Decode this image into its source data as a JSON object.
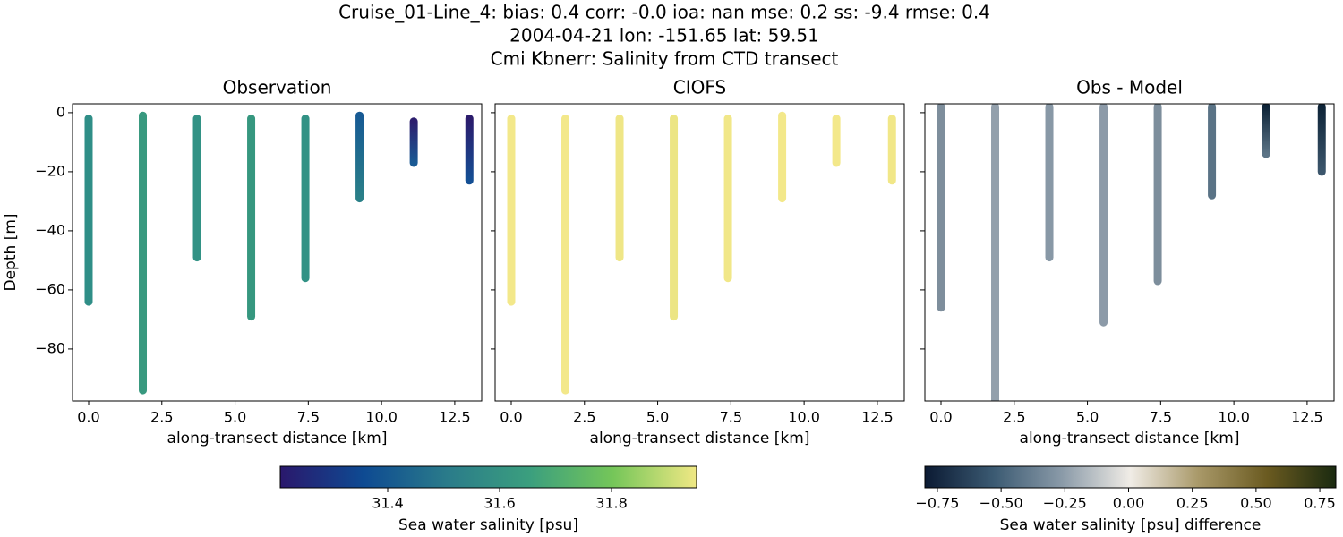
{
  "suptitle": [
    "Cruise_01-Line_4: bias: 0.4  corr: -0.0  ioa: nan  mse: 0.2  ss: -9.4  rmse: 0.4",
    "2004-04-21 lon: -151.65 lat: 59.51",
    "Cmi Kbnerr: Salinity from CTD transect"
  ],
  "chart_data": [
    {
      "type": "profile",
      "title": "Observation",
      "xlabel": "along-transect distance [km]",
      "ylabel": "Depth [m]",
      "xlim": [
        -0.55,
        13.42
      ],
      "ylim": [
        -97.6,
        3
      ],
      "xticks": [
        {
          "value": 0,
          "label": "0.0"
        },
        2.5,
        {
          "value": 5,
          "label": "5.0"
        },
        7.5,
        {
          "value": 10,
          "label": "10.0"
        },
        12.5
      ],
      "yticks": [
        {
          "value": -80,
          "label": "−80"
        },
        {
          "value": -60,
          "label": "−60"
        },
        {
          "value": -40,
          "label": "−40"
        },
        {
          "value": -20,
          "label": "−20"
        },
        0
      ],
      "series": [
        {
          "x": 0,
          "top": -2,
          "bottom": -64,
          "colors": [
            "#2f8e87",
            "#2f8e87"
          ]
        },
        {
          "x": 1.85,
          "top": -1,
          "bottom": -94,
          "colors": [
            "#38997f",
            "#38997f"
          ]
        },
        {
          "x": 3.7,
          "top": -2,
          "bottom": -49,
          "colors": [
            "#329285",
            "#329285"
          ]
        },
        {
          "x": 5.55,
          "top": -2,
          "bottom": -69,
          "colors": [
            "#36977f",
            "#36977f"
          ]
        },
        {
          "x": 7.4,
          "top": -2,
          "bottom": -56,
          "colors": [
            "#329285",
            "#329285"
          ]
        },
        {
          "x": 9.25,
          "top": -1,
          "bottom": -29,
          "colors": [
            "#175a94",
            "#2a8088"
          ]
        },
        {
          "x": 11.1,
          "top": -3,
          "bottom": -17,
          "colors": [
            "#2d1e6e",
            "#1a5a94"
          ]
        },
        {
          "x": 13.0,
          "top": -2,
          "bottom": -23,
          "colors": [
            "#2b1b6c",
            "#144f94"
          ]
        }
      ]
    },
    {
      "type": "profile",
      "title": "CIOFS",
      "xlabel": "along-transect distance [km]",
      "xlim": [
        -0.55,
        13.42
      ],
      "ylim": [
        -97.6,
        3
      ],
      "xticks": [
        {
          "value": 0,
          "label": "0.0"
        },
        2.5,
        {
          "value": 5,
          "label": "5.0"
        },
        7.5,
        {
          "value": 10,
          "label": "10.0"
        },
        12.5
      ],
      "yticks": [
        -80,
        -60,
        -40,
        -20,
        0
      ],
      "ytick_labels": false,
      "series": [
        {
          "x": 0,
          "top": -2,
          "bottom": -64,
          "colors": [
            "#f3e88a",
            "#f3e88a"
          ]
        },
        {
          "x": 1.85,
          "top": -2,
          "bottom": -94,
          "colors": [
            "#f3e88a",
            "#f3e88a"
          ]
        },
        {
          "x": 3.7,
          "top": -2,
          "bottom": -49,
          "colors": [
            "#efe686",
            "#efe686"
          ]
        },
        {
          "x": 5.55,
          "top": -2,
          "bottom": -69,
          "colors": [
            "#ece584",
            "#ece584"
          ]
        },
        {
          "x": 7.4,
          "top": -2,
          "bottom": -56,
          "colors": [
            "#f1e788",
            "#f1e788"
          ]
        },
        {
          "x": 9.25,
          "top": -1,
          "bottom": -29,
          "colors": [
            "#f3e88a",
            "#f3e88a"
          ]
        },
        {
          "x": 11.1,
          "top": -2,
          "bottom": -17,
          "colors": [
            "#f3e88a",
            "#f3e88a"
          ]
        },
        {
          "x": 13.0,
          "top": -2,
          "bottom": -23,
          "colors": [
            "#f1e788",
            "#f1e788"
          ]
        }
      ]
    },
    {
      "type": "profile",
      "title": "Obs - Model",
      "xlabel": "along-transect distance [km]",
      "xlim": [
        -0.55,
        13.42
      ],
      "ylim": [
        -97.6,
        3
      ],
      "xticks": [
        {
          "value": 0,
          "label": "0.0"
        },
        2.5,
        {
          "value": 5,
          "label": "5.0"
        },
        7.5,
        {
          "value": 10,
          "label": "10.0"
        },
        12.5
      ],
      "yticks": [
        -80,
        -60,
        -40,
        -20,
        0
      ],
      "ytick_labels": false,
      "series": [
        {
          "x": 0,
          "top": 2,
          "bottom": -66,
          "colors": [
            "#7e8e9c",
            "#7e8e9c"
          ]
        },
        {
          "x": 1.85,
          "top": 2,
          "bottom": -100,
          "colors": [
            "#93a0ac",
            "#93a0ac"
          ]
        },
        {
          "x": 3.7,
          "top": 2,
          "bottom": -49,
          "colors": [
            "#8898a6",
            "#8898a6"
          ]
        },
        {
          "x": 5.55,
          "top": 2,
          "bottom": -71,
          "colors": [
            "#8c9aa8",
            "#8c9aa8"
          ]
        },
        {
          "x": 7.4,
          "top": 2,
          "bottom": -57,
          "colors": [
            "#7d8e9c",
            "#7d8e9c"
          ]
        },
        {
          "x": 9.25,
          "top": 2,
          "bottom": -28,
          "colors": [
            "#5a7386",
            "#5a7386"
          ]
        },
        {
          "x": 11.1,
          "top": 2,
          "bottom": -14,
          "colors": [
            "#0e2438",
            "#5c7486"
          ]
        },
        {
          "x": 13.0,
          "top": 2,
          "bottom": -20,
          "colors": [
            "#0e2438",
            "#3c566c"
          ]
        }
      ]
    }
  ],
  "colorbars": [
    {
      "label": "Sea water salinity [psu]",
      "lim": [
        31.208,
        31.952
      ],
      "ticks": [
        31.4,
        31.6,
        31.8
      ],
      "colors": [
        "#2a186c",
        "#0e4a92",
        "#2a7b8a",
        "#3b9f7e",
        "#75c659",
        "#f0e884"
      ]
    },
    {
      "label": "Sea water salinity [psu] difference",
      "lim": [
        -0.799,
        0.813
      ],
      "ticks": [
        {
          "value": -0.75,
          "label": "−0.75"
        },
        {
          "value": -0.5,
          "label": "−0.50"
        },
        {
          "value": -0.25,
          "label": "−0.25"
        },
        {
          "value": 0,
          "label": "0.00"
        },
        0.25,
        {
          "value": 0.5,
          "label": "0.50"
        },
        0.75
      ],
      "colors": [
        "#0b1a33",
        "#3b5a72",
        "#8a9aa8",
        "#f0ece6",
        "#a89868",
        "#6a5a20",
        "#1a2a10"
      ]
    }
  ]
}
